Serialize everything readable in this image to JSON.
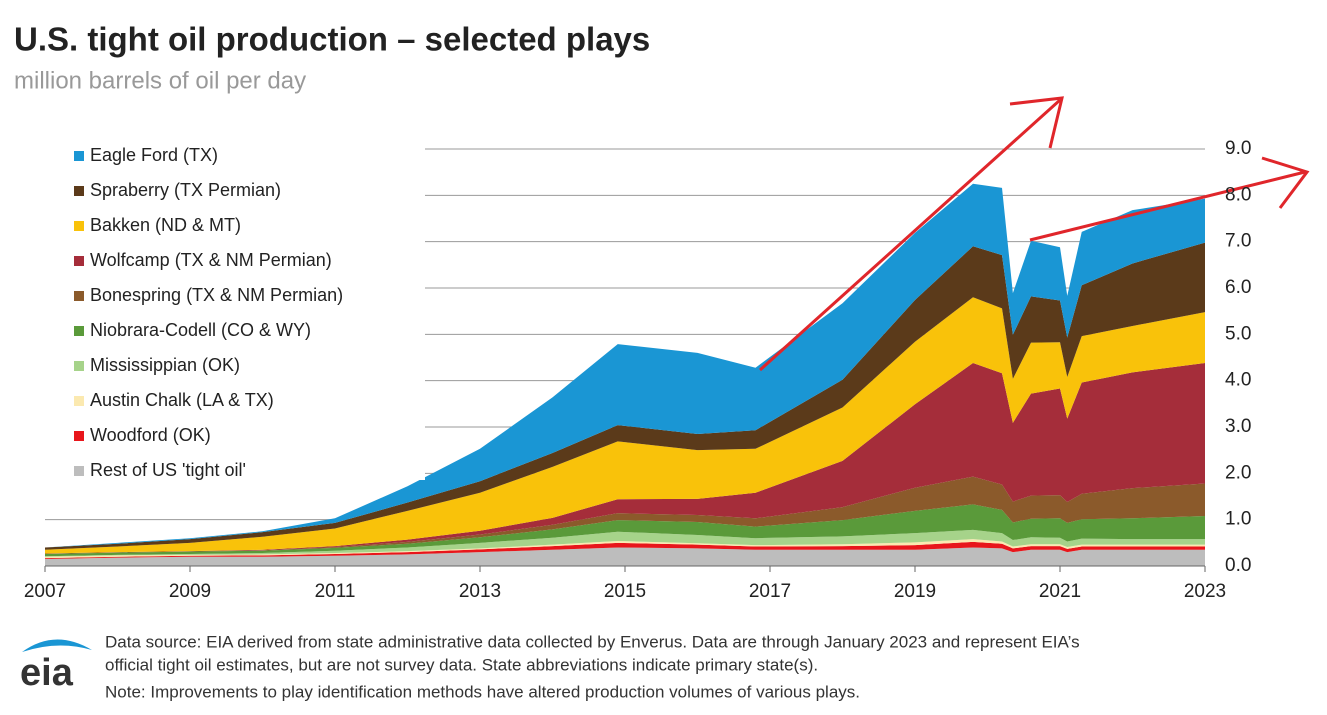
{
  "chart_data": {
    "type": "stacked_area",
    "title": "U.S. tight oil production – selected plays",
    "subtitle": "million barrels of oil per day",
    "x": [
      2007,
      2008,
      2009,
      2010,
      2011,
      2012,
      2013,
      2014,
      2014.9,
      2016,
      2016.8,
      2018,
      2019,
      2019.8,
      2020.2,
      2020.35,
      2020.6,
      2021,
      2021.1,
      2021.3,
      2022,
      2023
    ],
    "xlim": [
      2007,
      2023
    ],
    "xticks": [
      2007,
      2009,
      2011,
      2013,
      2015,
      2017,
      2019,
      2021,
      2023
    ],
    "ylim": [
      0,
      9
    ],
    "yticks": [
      {
        "value": 0,
        "label": "0.0"
      },
      {
        "value": 1,
        "label": "1.0"
      },
      {
        "value": 2,
        "label": "2.0"
      },
      {
        "value": 3,
        "label": "3.0"
      },
      {
        "value": 4,
        "label": "4.0"
      },
      {
        "value": 5,
        "label": "5.0"
      },
      {
        "value": 6,
        "label": "6.0"
      },
      {
        "value": 7,
        "label": "7.0"
      },
      {
        "value": 8,
        "label": "8.0"
      },
      {
        "value": 9,
        "label": "9.0"
      }
    ],
    "grid": true,
    "legend": "upper left",
    "series": [
      {
        "name": "Rest of US 'tight oil'",
        "color": "#bdbdbd",
        "values": [
          0.15,
          0.18,
          0.2,
          0.2,
          0.22,
          0.25,
          0.3,
          0.35,
          0.4,
          0.38,
          0.35,
          0.35,
          0.35,
          0.4,
          0.38,
          0.3,
          0.35,
          0.35,
          0.3,
          0.35,
          0.35,
          0.35
        ]
      },
      {
        "name": "Woodford (OK)",
        "color": "#e8161b",
        "values": [
          0.02,
          0.02,
          0.02,
          0.03,
          0.04,
          0.05,
          0.06,
          0.08,
          0.1,
          0.08,
          0.07,
          0.08,
          0.1,
          0.12,
          0.1,
          0.08,
          0.08,
          0.08,
          0.07,
          0.07,
          0.07,
          0.07
        ]
      },
      {
        "name": "Austin Chalk (LA & TX)",
        "color": "#fbe9b0",
        "values": [
          0.03,
          0.03,
          0.02,
          0.02,
          0.02,
          0.02,
          0.02,
          0.03,
          0.04,
          0.03,
          0.03,
          0.04,
          0.06,
          0.06,
          0.05,
          0.04,
          0.04,
          0.04,
          0.04,
          0.04,
          0.04,
          0.04
        ]
      },
      {
        "name": "Mississippian (OK)",
        "color": "#a6d38a",
        "values": [
          0.01,
          0.01,
          0.02,
          0.03,
          0.05,
          0.08,
          0.12,
          0.15,
          0.2,
          0.18,
          0.15,
          0.17,
          0.2,
          0.2,
          0.18,
          0.14,
          0.15,
          0.14,
          0.12,
          0.13,
          0.12,
          0.12
        ]
      },
      {
        "name": "Niobrara-Codell (CO & WY)",
        "color": "#5a9a3a",
        "values": [
          0.05,
          0.05,
          0.05,
          0.05,
          0.06,
          0.08,
          0.12,
          0.18,
          0.25,
          0.28,
          0.25,
          0.35,
          0.48,
          0.55,
          0.5,
          0.38,
          0.4,
          0.42,
          0.4,
          0.42,
          0.45,
          0.5
        ]
      },
      {
        "name": "Bonespring (TX & NM Permian)",
        "color": "#8b5a2b",
        "values": [
          0.01,
          0.01,
          0.01,
          0.01,
          0.02,
          0.04,
          0.06,
          0.1,
          0.15,
          0.15,
          0.18,
          0.28,
          0.5,
          0.6,
          0.55,
          0.45,
          0.5,
          0.5,
          0.45,
          0.55,
          0.65,
          0.7
        ]
      },
      {
        "name": "Wolfcamp (TX & NM Permian)",
        "color": "#a52d3a",
        "values": [
          0,
          0,
          0,
          0.01,
          0.02,
          0.05,
          0.08,
          0.15,
          0.3,
          0.35,
          0.55,
          1.0,
          1.8,
          2.45,
          2.4,
          1.7,
          2.2,
          2.3,
          1.8,
          2.4,
          2.5,
          2.6
        ]
      },
      {
        "name": "Bakken (ND & MT)",
        "color": "#f9c20a",
        "values": [
          0.08,
          0.12,
          0.18,
          0.28,
          0.38,
          0.62,
          0.82,
          1.1,
          1.25,
          1.05,
          0.95,
          1.15,
          1.35,
          1.42,
          1.4,
          0.95,
          1.1,
          1.0,
          0.9,
          1.0,
          1.0,
          1.1
        ]
      },
      {
        "name": "Spraberry (TX Permian)",
        "color": "#5b3a1a",
        "values": [
          0.05,
          0.06,
          0.08,
          0.1,
          0.12,
          0.18,
          0.25,
          0.3,
          0.35,
          0.35,
          0.4,
          0.6,
          0.9,
          1.1,
          1.15,
          0.95,
          1.0,
          0.9,
          0.85,
          1.1,
          1.35,
          1.5
        ]
      },
      {
        "name": "Eagle Ford (TX)",
        "color": "#1a96d4",
        "values": [
          0,
          0.02,
          0.02,
          0.02,
          0.1,
          0.35,
          0.7,
          1.2,
          1.75,
          1.75,
          1.35,
          1.65,
          1.45,
          1.35,
          1.45,
          0.9,
          1.2,
          1.15,
          0.9,
          1.15,
          1.15,
          0.95
        ]
      }
    ],
    "notes": [
      "Data source: EIA derived from state administrative data collected by Enverus. Data are through January 2023 and represent EIA’s",
      "official tight oil estimates, but are not survey data. State abbreviations indicate primary state(s).",
      "Note: Improvements to play identification methods have altered production volumes of various plays."
    ],
    "logo": "eia"
  }
}
